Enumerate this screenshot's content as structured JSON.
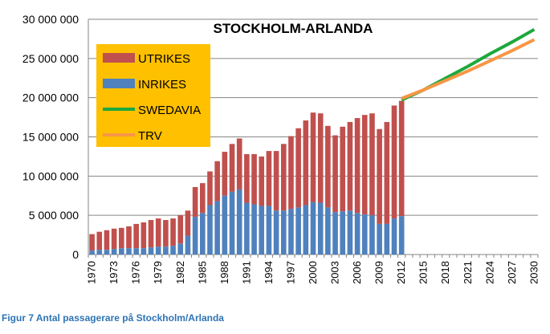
{
  "chart_data": {
    "type": "bar",
    "title": "STOCKHOLM-ARLANDA",
    "caption": "Figur 7 Antal passagerare på Stockholm/Arlanda",
    "ylim": [
      0,
      30000000
    ],
    "yticks": [
      "0",
      "5 000 000",
      "10 000 000",
      "15 000 000",
      "20 000 000",
      "25 000 000",
      "30 000 000"
    ],
    "xrange": [
      1970,
      2030
    ],
    "xtick_step": 3,
    "legend": [
      "UTRIKES",
      "INRIKES",
      "SWEDAVIA",
      "TRV"
    ],
    "colors": {
      "UTRIKES": "#C0504D",
      "INRIKES": "#4F81BD",
      "SWEDAVIA": "#1EA83C",
      "TRV": "#F79646",
      "legend_bg": "#FFC000"
    },
    "bar_years": [
      1970,
      1971,
      1972,
      1973,
      1974,
      1975,
      1976,
      1977,
      1978,
      1979,
      1980,
      1981,
      1982,
      1983,
      1984,
      1985,
      1986,
      1987,
      1988,
      1989,
      1990,
      1991,
      1992,
      1993,
      1994,
      1995,
      1996,
      1997,
      1998,
      1999,
      2000,
      2001,
      2002,
      2003,
      2004,
      2005,
      2006,
      2007,
      2008,
      2009,
      2010,
      2011,
      2012
    ],
    "inrikes_millions": [
      0.5,
      0.6,
      0.6,
      0.7,
      0.8,
      0.8,
      0.8,
      0.8,
      0.9,
      1.0,
      1.0,
      1.1,
      1.4,
      2.4,
      4.8,
      5.3,
      6.3,
      6.8,
      7.5,
      8.0,
      8.3,
      6.6,
      6.4,
      6.2,
      6.2,
      5.6,
      5.6,
      5.8,
      6.0,
      6.3,
      6.7,
      6.6,
      6.0,
      5.4,
      5.5,
      5.6,
      5.3,
      5.1,
      5.0,
      3.9,
      3.9,
      4.6,
      4.9
    ],
    "total_millions": [
      2.6,
      2.9,
      3.1,
      3.3,
      3.4,
      3.6,
      3.9,
      4.1,
      4.4,
      4.6,
      4.4,
      4.6,
      5.0,
      5.6,
      8.6,
      9.1,
      10.6,
      11.9,
      13.1,
      14.1,
      14.8,
      12.8,
      12.8,
      12.5,
      13.2,
      13.2,
      14.1,
      15.1,
      16.1,
      17.1,
      18.1,
      18.0,
      16.4,
      15.2,
      16.3,
      16.9,
      17.4,
      17.8,
      18.0,
      16.0,
      16.9,
      19.0,
      19.6
    ],
    "lines": [
      {
        "name": "SWEDAVIA",
        "x": [
          2012,
          2015,
          2018,
          2021,
          2024,
          2027,
          2030
        ],
        "y_millions": [
          19.7,
          21.0,
          22.5,
          24.0,
          25.6,
          27.1,
          28.7
        ]
      },
      {
        "name": "TRV",
        "x": [
          2012,
          2015,
          2018,
          2021,
          2024,
          2027,
          2030
        ],
        "y_millions": [
          19.9,
          21.0,
          22.2,
          23.4,
          24.7,
          26.0,
          27.4
        ]
      }
    ]
  }
}
